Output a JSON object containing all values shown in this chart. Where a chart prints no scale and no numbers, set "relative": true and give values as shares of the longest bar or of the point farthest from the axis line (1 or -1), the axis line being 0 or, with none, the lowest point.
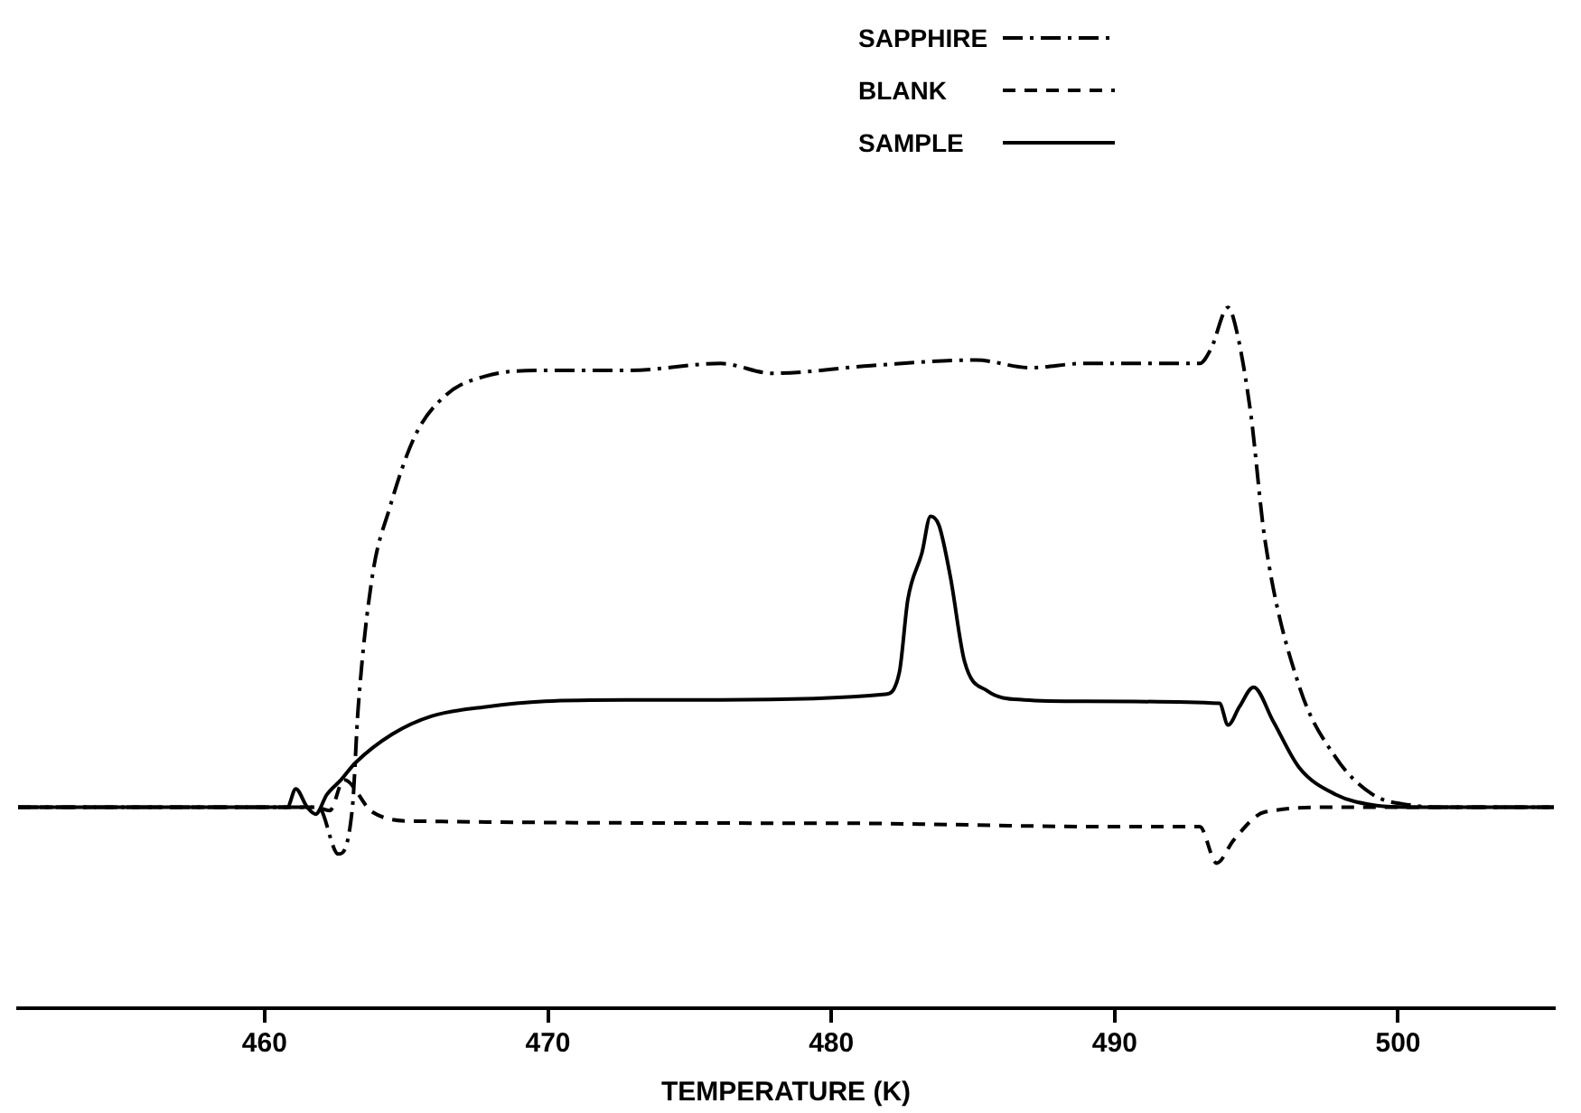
{
  "chart_data": {
    "type": "line",
    "relative": true,
    "xlabel": "TEMPERATURE (K)",
    "xlim": [
      451.3,
      505.5
    ],
    "xticks": [
      460,
      470,
      480,
      490,
      500
    ],
    "grid": false,
    "legend": "top",
    "marker": "none",
    "series": [
      {
        "name": "SAPPHIRE",
        "color": "#000000",
        "line_style": "dashdot",
        "x": [
          451.3,
          461.9,
          462.6,
          463.1,
          463.3,
          463.8,
          464.4,
          465.3,
          466.4,
          467.8,
          469.6,
          472.8,
          476.1,
          477.9,
          481.4,
          485.1,
          487.0,
          488.9,
          493.0,
          493.4,
          494.0,
          494.3,
          494.8,
          495.3,
          496.5,
          497.8,
          499.1,
          500.4,
          501.6,
          505.5
        ],
        "values": [
          0.287,
          0.287,
          0.22,
          0.287,
          0.427,
          0.616,
          0.712,
          0.816,
          0.875,
          0.902,
          0.91,
          0.91,
          0.92,
          0.906,
          0.917,
          0.925,
          0.914,
          0.92,
          0.92,
          0.941,
          1.0,
          0.967,
          0.849,
          0.669,
          0.461,
          0.358,
          0.305,
          0.29,
          0.287,
          0.287
        ]
      },
      {
        "name": "BLANK",
        "color": "#000000",
        "line_style": "dashed",
        "x": [
          451.3,
          461.8,
          462.3,
          462.8,
          463.8,
          465.3,
          480.0,
          490.0,
          493.0,
          493.6,
          494.2,
          495.3,
          498.0,
          505.5
        ],
        "values": [
          0.287,
          0.287,
          0.282,
          0.326,
          0.28,
          0.267,
          0.264,
          0.259,
          0.259,
          0.207,
          0.24,
          0.28,
          0.287,
          0.287
        ]
      },
      {
        "name": "SAMPLE",
        "color": "#000000",
        "line_style": "solid",
        "x": [
          451.3,
          460.8,
          461.1,
          461.5,
          461.8,
          462.2,
          462.7,
          463.2,
          464.5,
          465.9,
          467.8,
          469.9,
          472.8,
          476.1,
          481.9,
          482.4,
          482.7,
          483.2,
          483.5,
          483.8,
          484.2,
          484.7,
          485.5,
          486.8,
          488.9,
          493.7,
          494.0,
          494.4,
          494.9,
          495.6,
          496.5,
          497.8,
          499.1,
          500.4,
          505.5
        ],
        "values": [
          0.287,
          0.287,
          0.313,
          0.287,
          0.277,
          0.305,
          0.326,
          0.35,
          0.391,
          0.417,
          0.43,
          0.438,
          0.44,
          0.44,
          0.448,
          0.479,
          0.583,
          0.65,
          0.702,
          0.689,
          0.616,
          0.495,
          0.453,
          0.44,
          0.438,
          0.435,
          0.404,
          0.43,
          0.458,
          0.409,
          0.344,
          0.305,
          0.29,
          0.287,
          0.287
        ]
      }
    ]
  }
}
